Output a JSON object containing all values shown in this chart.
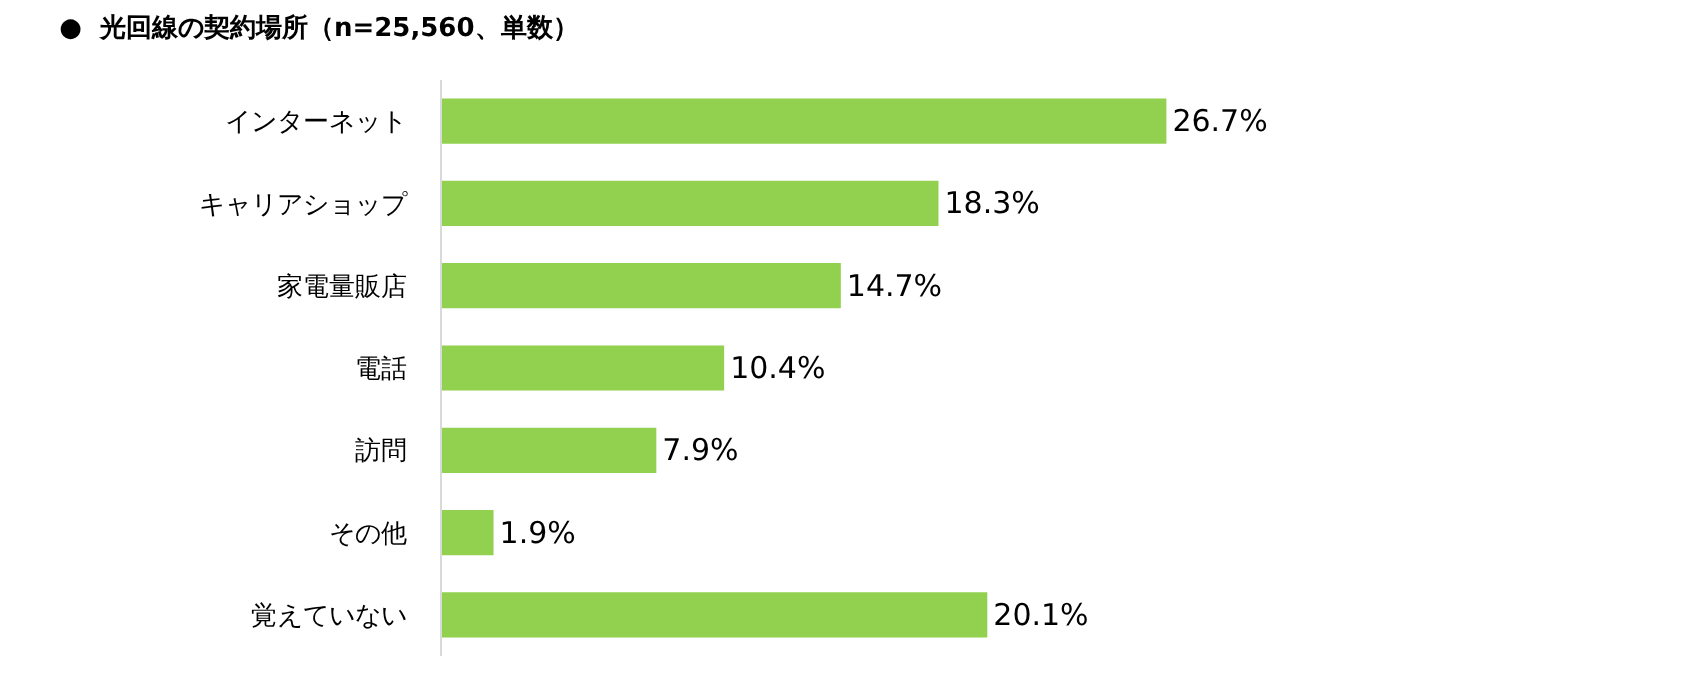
{
  "chart_data": {
    "type": "bar",
    "orientation": "horizontal",
    "title": "●  光回線の契約場所（n=25,560、単数）",
    "categories": [
      "インターネット",
      "キャリアショップ",
      "家電量販店",
      "電話",
      "訪問",
      "その他",
      "覚えていない"
    ],
    "values": [
      26.7,
      18.3,
      14.7,
      10.4,
      7.9,
      1.9,
      20.1
    ],
    "value_labels": [
      "26.7%",
      "18.3%",
      "14.7%",
      "10.4%",
      "7.9%",
      "1.9%",
      "20.1%"
    ],
    "color": "#92d050",
    "xlim": [
      0,
      46
    ],
    "tick_labels": "y"
  }
}
